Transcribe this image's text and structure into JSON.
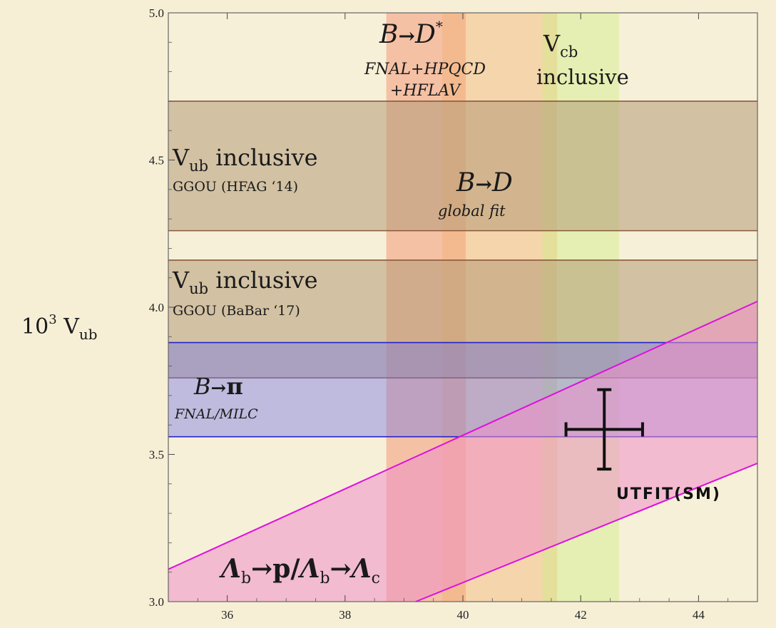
{
  "chart_data": {
    "type": "band-overlay",
    "xlim": [
      35,
      45
    ],
    "ylim": [
      3.0,
      5.0
    ],
    "ylabel": "10³ V_ub",
    "x_ticks": [
      36,
      38,
      40,
      42,
      44
    ],
    "y_ticks": [
      3.0,
      3.5,
      4.0,
      4.5,
      5.0
    ],
    "x_tick_labels": [
      "36",
      "38",
      "40",
      "42",
      "44"
    ],
    "y_tick_labels": [
      "3.0",
      "3.5",
      "4.0",
      "4.5",
      "5.0"
    ],
    "horizontal_bands": [
      {
        "name": "Vub inclusive GGOU (HFAG '14)",
        "ymin": 4.26,
        "ymax": 4.7,
        "color": "#b49b78"
      },
      {
        "name": "Vub inclusive GGOU (BaBar '17)",
        "ymin": 3.76,
        "ymax": 4.16,
        "color": "#b49b78"
      },
      {
        "name": "B→π FNAL/MILC",
        "ymin": 3.56,
        "ymax": 3.88,
        "color": "#7373e6"
      }
    ],
    "vertical_bands": [
      {
        "name": "B→D* FNAL+HPQCD+HFLAV",
        "xmin": 38.7,
        "xmax": 40.05,
        "color": "#f08060"
      },
      {
        "name": "B→D global fit",
        "xmin": 39.65,
        "xmax": 41.6,
        "color": "#f2b070"
      },
      {
        "name": "Vcb inclusive",
        "xmin": 41.35,
        "xmax": 42.65,
        "color": "#ccee80"
      }
    ],
    "diagonal_band": {
      "name": "Λb→p/Λb→Λc",
      "upper_line": [
        [
          35,
          3.11
        ],
        [
          45,
          4.02
        ]
      ],
      "lower_line": [
        [
          39.2,
          3.0
        ],
        [
          45,
          3.47
        ]
      ],
      "color": "#ee90c8",
      "line_color": "#dd11dd"
    },
    "point": {
      "name": "UTFIT(SM)",
      "x": 42.4,
      "y": 3.585,
      "xerr": 0.65,
      "yerr": 0.135
    }
  },
  "labels": {
    "ylabel_main": "10",
    "ylabel_sup": "3",
    "ylabel_V": "V",
    "ylabel_sub": "ub",
    "vub1_V": "V",
    "vub1_sub": "ub",
    "vub1_rest": " inclusive",
    "vub1_source": "GGOU (HFAG ‘14)",
    "vub2_V": "V",
    "vub2_sub": "ub",
    "vub2_rest": " inclusive",
    "vub2_source": "GGOU (BaBar ‘17)",
    "bpi_B": "B",
    "bpi_arrow": "→",
    "bpi_pi": "π",
    "bpi_source": "FNAL/MILC",
    "bdstar_B": "B",
    "bdstar_arrow": "→",
    "bdstar_D": "D",
    "bdstar_star": "*",
    "bdstar_source1": "FNAL+HPQCD",
    "bdstar_source2": "+HFLAV",
    "bd_B": "B",
    "bd_arrow": "→",
    "bd_D": "D",
    "bd_source": "global fit",
    "vcb_V": "V",
    "vcb_sub": "cb",
    "vcb_line2": "inclusive",
    "lam_L1": "Λ",
    "lam_b1": "b",
    "lam_mid": "→p/",
    "lam_L2": "Λ",
    "lam_b2": "b",
    "lam_arrow": "→",
    "lam_L3": "Λ",
    "lam_c": "c",
    "utfit": "UTFIT(SM)"
  }
}
